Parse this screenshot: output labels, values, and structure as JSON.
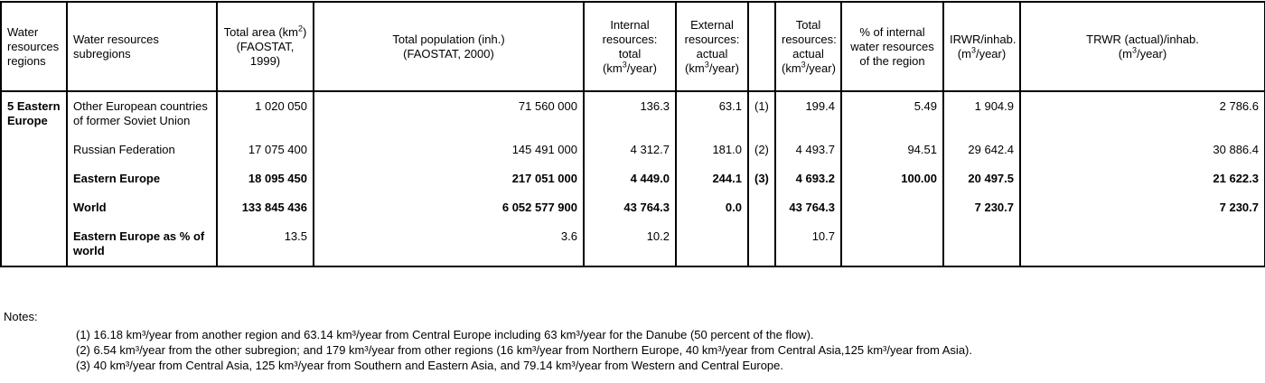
{
  "headers": [
    {
      "text": "Water resources regions"
    },
    {
      "text": "Water resources subregions"
    },
    {
      "text": "Total area (km",
      "sup": "2",
      "after": ")",
      "line2": "(FAOSTAT, 1999)"
    },
    {
      "text": "Total population (inh.)",
      "line2": "(FAOSTAT, 2000)"
    },
    {
      "text": "Internal resources: total",
      "line2pre": "(km",
      "sup": "3",
      "line2post": "/year)"
    },
    {
      "text": "External resources: actual",
      "line2pre": "(km",
      "sup": "3",
      "line2post": "/year)"
    },
    {
      "text": ""
    },
    {
      "text": "Total resources: actual",
      "line2pre": "(km",
      "sup": "3",
      "line2post": "/year)"
    },
    {
      "text": "% of internal water resources of the region"
    },
    {
      "text": "IRWR/inhab.",
      "line2pre": "(m",
      "sup": "3",
      "line2post": "/year)"
    },
    {
      "text": "TRWR (actual)/inhab.",
      "line2pre": "(m",
      "sup": "3",
      "line2post": "/year)"
    }
  ],
  "region": "5 Eastern Europe",
  "rows": [
    {
      "sub": "Other European countries of former Soviet Union",
      "area": "1 020 050",
      "pop": "71 560 000",
      "internal": "136.3",
      "external": "63.1",
      "note": "(1)",
      "total": "199.4",
      "pct": "5.49",
      "irwr": "1 904.9",
      "trwr": "2 786.6",
      "bold": false
    },
    {
      "sub": "Russian Federation",
      "area": "17 075 400",
      "pop": "145 491 000",
      "internal": "4 312.7",
      "external": "181.0",
      "note": "(2)",
      "total": "4 493.7",
      "pct": "94.51",
      "irwr": "29 642.4",
      "trwr": "30 886.4",
      "bold": false
    },
    {
      "sub": "Eastern Europe",
      "area": "18 095 450",
      "pop": "217 051 000",
      "internal": "4 449.0",
      "external": "244.1",
      "note": "(3)",
      "total": "4 693.2",
      "pct": "100.00",
      "irwr": "20 497.5",
      "trwr": "21 622.3",
      "bold": true
    },
    {
      "sub": "World",
      "area": "133 845 436",
      "pop": "6 052 577 900",
      "internal": "43 764.3",
      "external": "0.0",
      "note": "",
      "total": "43 764.3",
      "pct": "",
      "irwr": "7 230.7",
      "trwr": "7 230.7",
      "bold": true
    },
    {
      "sub": "Eastern Europe as % of world",
      "area": "13.5",
      "pop": "3.6",
      "internal": "10.2",
      "external": "",
      "note": "",
      "total": "10.7",
      "pct": "",
      "irwr": "",
      "trwr": "",
      "bold": false
    }
  ],
  "notes_label": "Notes:",
  "notes": [
    "(1) 16.18 km³/year from another region and 63.14 km³/year from Central Europe including 63 km³/year for the Danube (50 percent of the flow).",
    "(2) 6.54 km³/year from the other subregion; and 179 km³/year from other regions (16 km³/year from Northern Europe, 40 km³/year from Central Asia,125 km³/year from Asia).",
    "(3) 40 km³/year from Central Asia, 125 km³/year from Southern and Eastern Asia, and 79.14 km³/year from Western and Central Europe."
  ]
}
